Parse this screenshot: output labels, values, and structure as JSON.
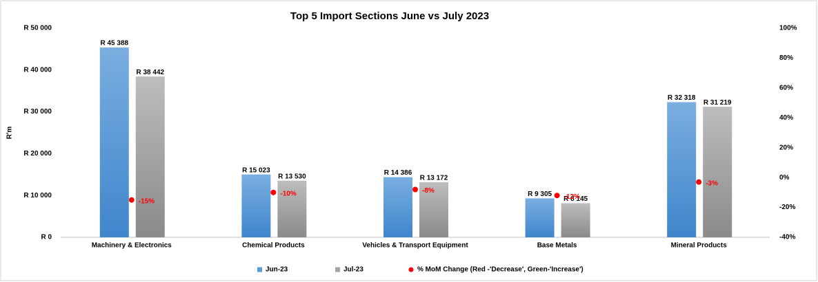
{
  "chart_data": {
    "type": "bar",
    "title": "Top 5 Import Sections June vs July 2023",
    "y_label": "R'm",
    "categories": [
      "Machinery & Electronics",
      "Chemical Products",
      "Vehicles & Transport Equipment",
      "Base Metals",
      "Mineral Products"
    ],
    "series": [
      {
        "name": "Jun-23",
        "color": "#5b9bd5",
        "values": [
          45388,
          15023,
          14386,
          9305,
          32318
        ],
        "value_labels": [
          "R 45 388",
          "R 15 023",
          "R 14 386",
          "R 9 305",
          "R 32 318"
        ]
      },
      {
        "name": "Jul-23",
        "color": "#a5a5a5",
        "values": [
          38442,
          13530,
          13172,
          8145,
          31219
        ],
        "value_labels": [
          "R 38 442",
          "R 13 530",
          "R 13 172",
          "R 8 145",
          "R 31 219"
        ]
      },
      {
        "name": "% MoM Change (Red -'Decrease', Green-'Increase')",
        "type": "scatter",
        "axis": "y2",
        "color": "#ff0000",
        "values": [
          -15,
          -10,
          -8,
          -12,
          -3
        ],
        "value_labels": [
          "-15%",
          "-10%",
          "-8%",
          "-12%",
          "-3%"
        ]
      }
    ],
    "ylim": [
      0,
      50000
    ],
    "yticks": [
      {
        "value": 0,
        "label": "R 0"
      },
      {
        "value": 10000,
        "label": "R 10 000"
      },
      {
        "value": 20000,
        "label": "R 20 000"
      },
      {
        "value": 30000,
        "label": "R 30 000"
      },
      {
        "value": 40000,
        "label": "R 40 000"
      },
      {
        "value": 50000,
        "label": "R 50 000"
      }
    ],
    "y2lim": [
      -40,
      100
    ],
    "y2ticks": [
      {
        "value": -40,
        "label": "-40%"
      },
      {
        "value": -20,
        "label": "-20%"
      },
      {
        "value": 0,
        "label": "0%"
      },
      {
        "value": 20,
        "label": "20%"
      },
      {
        "value": 40,
        "label": "40%"
      },
      {
        "value": 60,
        "label": "60%"
      },
      {
        "value": 80,
        "label": "80%"
      },
      {
        "value": 100,
        "label": "100%"
      }
    ],
    "legend": "bottom",
    "grid": false
  }
}
